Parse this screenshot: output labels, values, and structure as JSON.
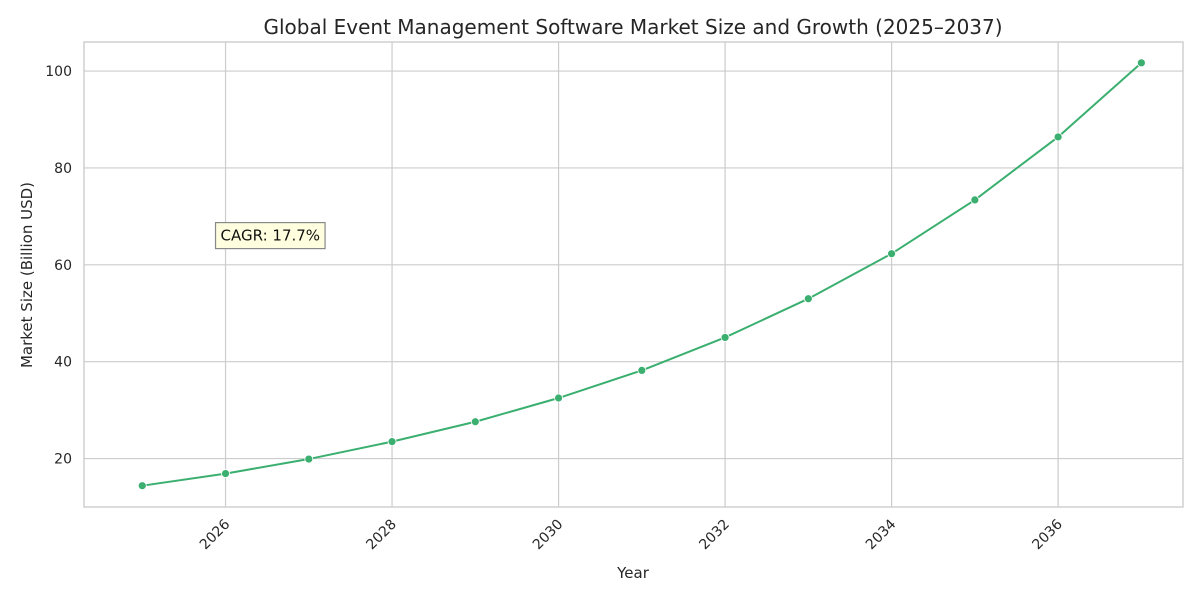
{
  "chart_data": {
    "type": "line",
    "title": "Global Event Management Software Market Size and Growth (2025–2037)",
    "xlabel": "Year",
    "ylabel": "Market Size (Billion USD)",
    "x": [
      2025,
      2026,
      2027,
      2028,
      2029,
      2030,
      2031,
      2032,
      2033,
      2034,
      2035,
      2036,
      2037
    ],
    "series": [
      {
        "values": [
          14.4,
          16.9,
          19.9,
          23.5,
          27.6,
          32.5,
          38.2,
          45.0,
          53.0,
          62.3,
          73.4,
          86.4,
          101.7
        ],
        "color": "#3aaf6f"
      }
    ],
    "xticks": [
      "2026",
      "2028",
      "2030",
      "2032",
      "2034",
      "2036"
    ],
    "yticks": [
      "20",
      "40",
      "60",
      "80",
      "100"
    ],
    "xlim": [
      2024.3,
      2037.5
    ],
    "ylim": [
      10,
      106
    ],
    "grid": true,
    "annotation": {
      "text": "CAGR: 17.7%",
      "x": 2026,
      "y": 65
    }
  }
}
